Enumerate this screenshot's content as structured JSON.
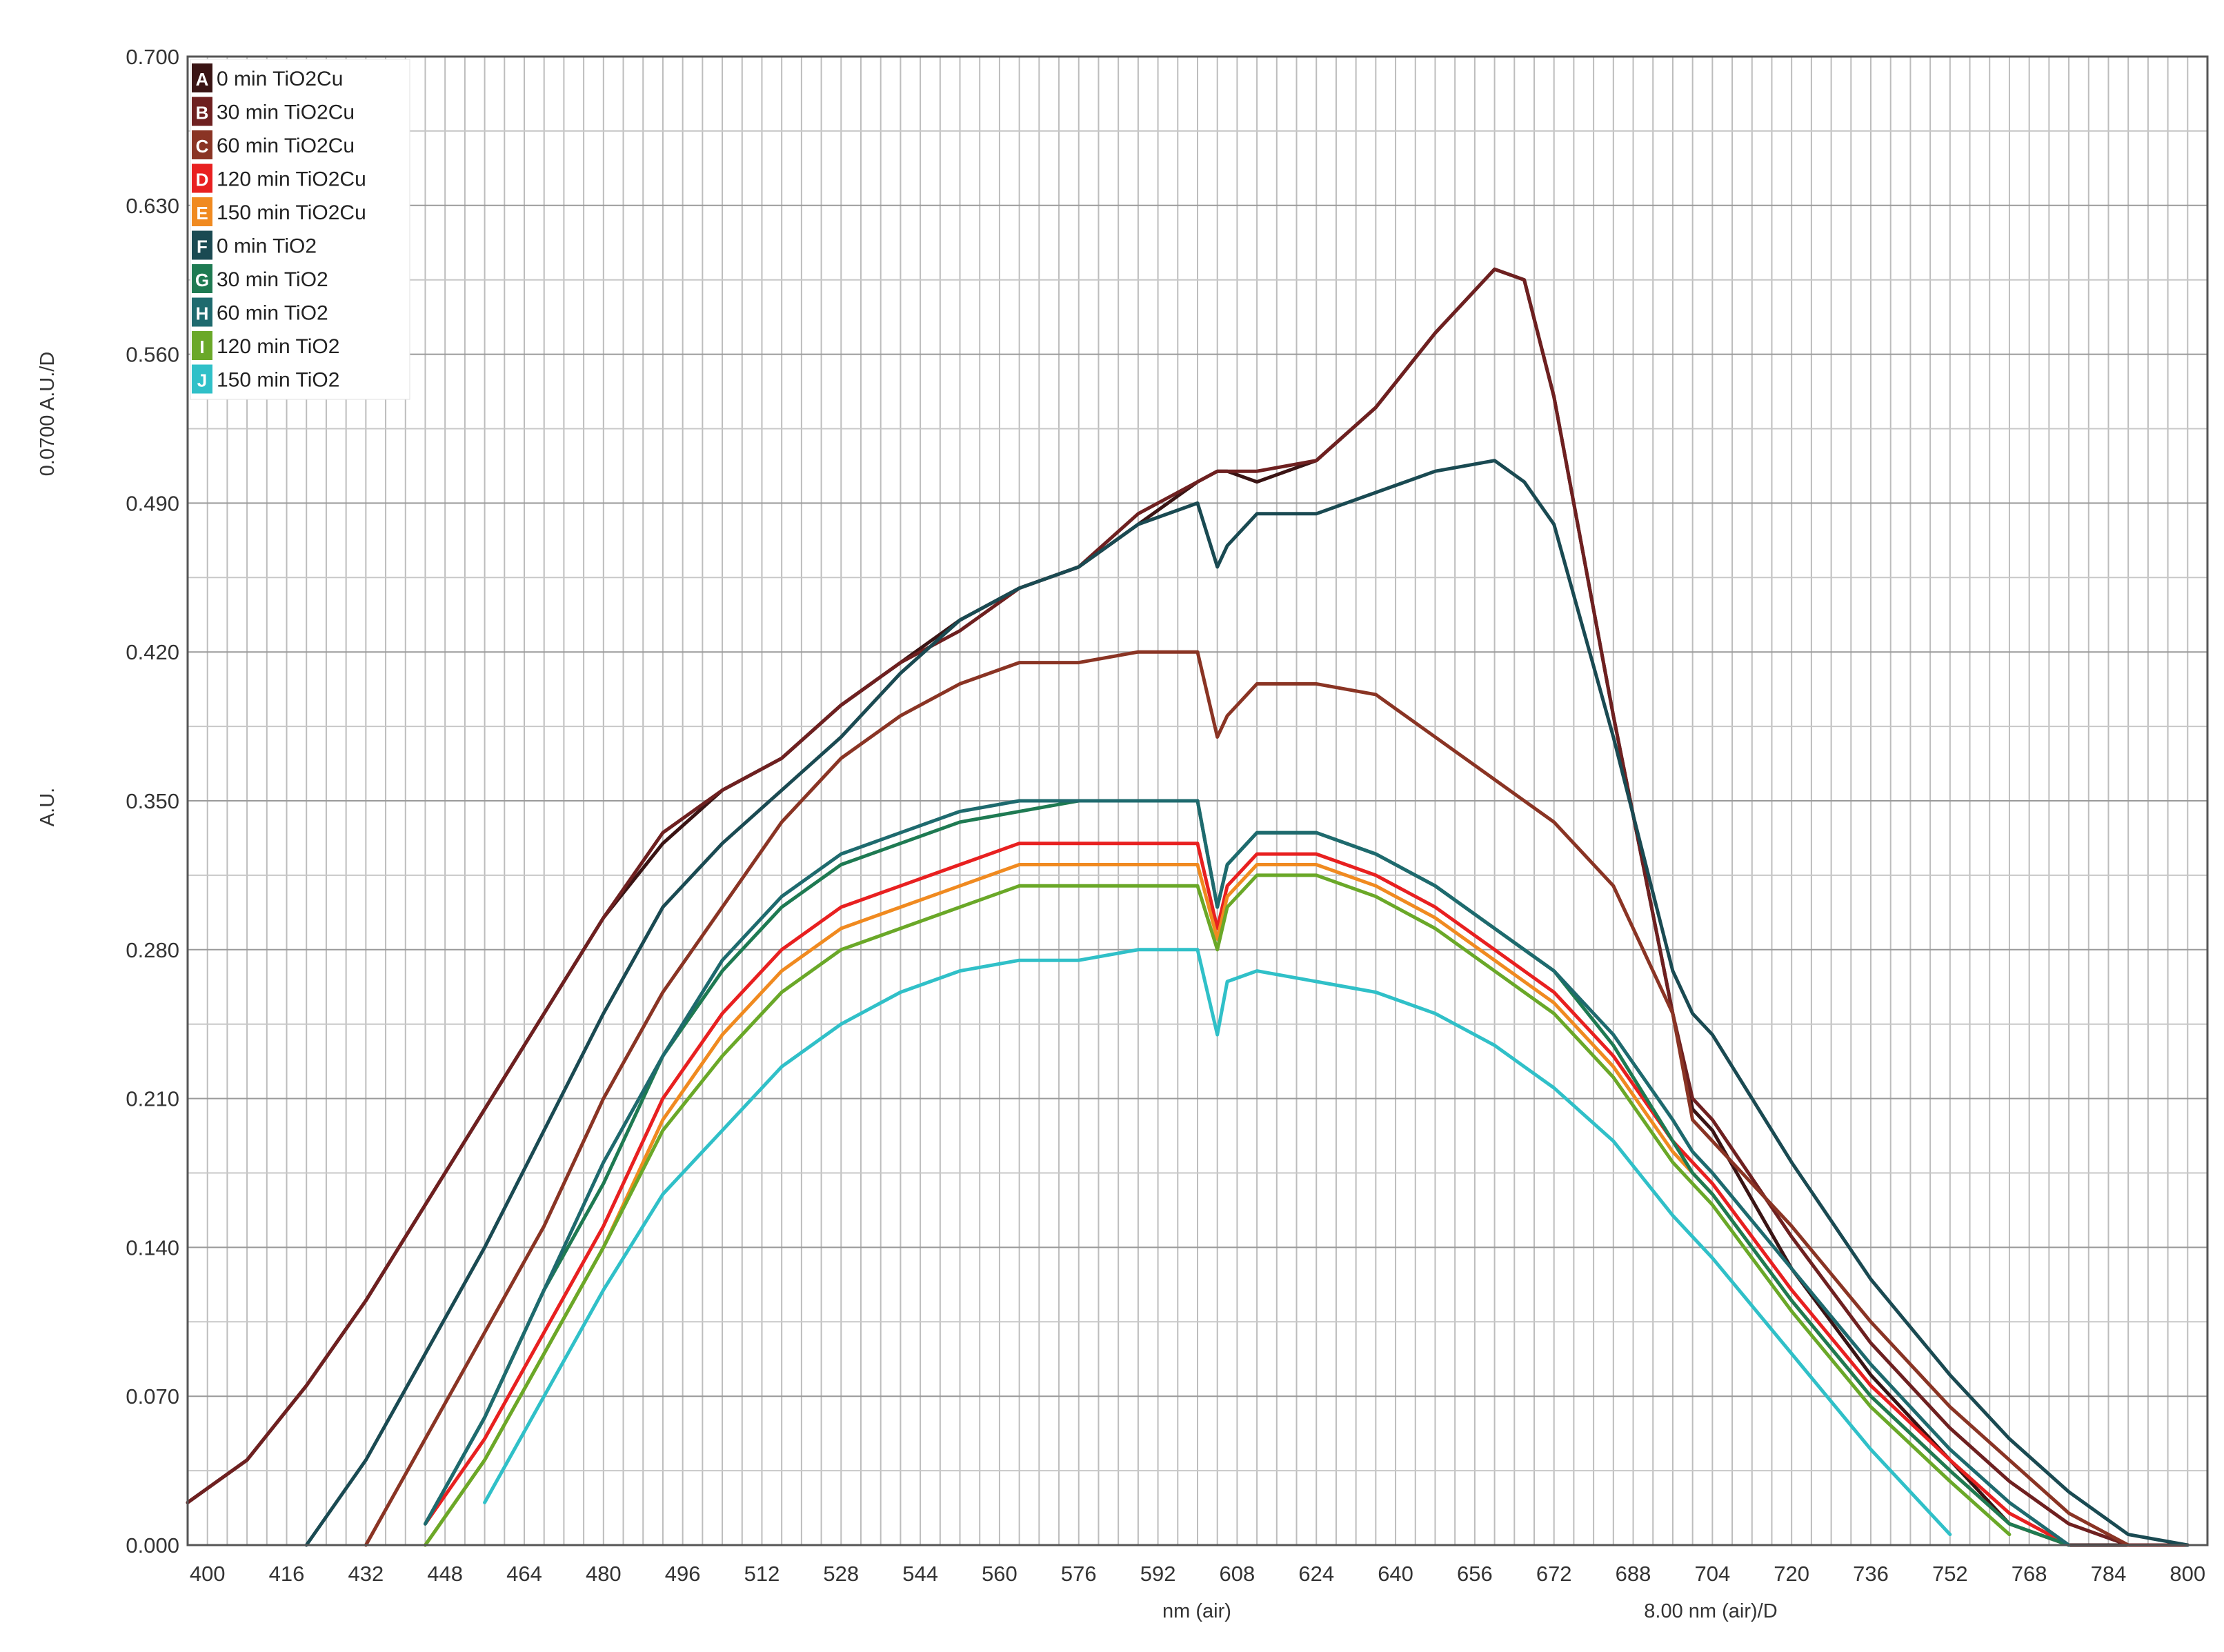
{
  "chart_data": {
    "type": "line",
    "title": "",
    "xlabel": "nm (air)",
    "ylabel": "A.U.",
    "x_scale_label": "8.00 nm (air)/D",
    "y_scale_label": "0.0700 A.U./D",
    "xlim": [
      396,
      804
    ],
    "ylim": [
      0.0,
      0.7
    ],
    "x_ticks": [
      "400",
      "416",
      "432",
      "448",
      "464",
      "480",
      "496",
      "512",
      "528",
      "544",
      "560",
      "576",
      "592",
      "608",
      "624",
      "640",
      "656",
      "672",
      "688",
      "704",
      "720",
      "736",
      "752",
      "768",
      "784",
      "800"
    ],
    "y_ticks": [
      "0.000",
      "0.070",
      "0.140",
      "0.210",
      "0.280",
      "0.350",
      "0.420",
      "0.490",
      "0.560",
      "0.630",
      "0.700"
    ],
    "grid": true,
    "legend_position": "top-left",
    "x": [
      396,
      408,
      420,
      432,
      444,
      456,
      468,
      480,
      492,
      504,
      516,
      528,
      540,
      552,
      564,
      576,
      588,
      600,
      604,
      606,
      612,
      624,
      636,
      648,
      660,
      666,
      672,
      684,
      696,
      700,
      704,
      720,
      736,
      752,
      764,
      776,
      788,
      800
    ],
    "series": [
      {
        "letter": "A",
        "name": "0 min TiO2Cu",
        "color": "#3a1414",
        "values": [
          0.02,
          0.04,
          0.075,
          0.115,
          0.16,
          0.205,
          0.25,
          0.295,
          0.33,
          0.355,
          0.37,
          0.395,
          0.415,
          0.435,
          0.45,
          0.46,
          0.48,
          0.5,
          0.505,
          0.505,
          0.5,
          0.51,
          0.535,
          0.57,
          0.6,
          0.595,
          0.54,
          0.39,
          0.25,
          0.205,
          0.195,
          0.13,
          0.08,
          0.04,
          0.01,
          0.0,
          0.0,
          0.0
        ]
      },
      {
        "letter": "B",
        "name": "30 min TiO2Cu",
        "color": "#6e2020",
        "values": [
          0.02,
          0.04,
          0.075,
          0.115,
          0.16,
          0.205,
          0.25,
          0.295,
          0.335,
          0.355,
          0.37,
          0.395,
          0.415,
          0.43,
          0.45,
          0.46,
          0.485,
          0.5,
          0.505,
          0.505,
          0.505,
          0.51,
          0.535,
          0.57,
          0.6,
          0.595,
          0.54,
          0.39,
          0.25,
          0.21,
          0.2,
          0.145,
          0.095,
          0.055,
          0.03,
          0.01,
          0.0,
          0.0
        ]
      },
      {
        "letter": "C",
        "name": "60 min TiO2Cu",
        "color": "#8a3424",
        "values": [
          null,
          null,
          null,
          0.0,
          0.05,
          0.1,
          0.15,
          0.21,
          0.26,
          0.3,
          0.34,
          0.37,
          0.39,
          0.405,
          0.415,
          0.415,
          0.42,
          0.42,
          0.38,
          0.39,
          0.405,
          0.405,
          0.4,
          0.38,
          0.36,
          0.35,
          0.34,
          0.31,
          0.25,
          0.2,
          0.19,
          0.15,
          0.105,
          0.065,
          0.04,
          0.015,
          0.0,
          null
        ]
      },
      {
        "letter": "D",
        "name": "120 min TiO2Cu",
        "color": "#e82020",
        "values": [
          null,
          null,
          null,
          null,
          0.01,
          0.05,
          0.1,
          0.15,
          0.21,
          0.25,
          0.28,
          0.3,
          0.31,
          0.32,
          0.33,
          0.33,
          0.33,
          0.33,
          0.29,
          0.31,
          0.325,
          0.325,
          0.315,
          0.3,
          0.28,
          0.27,
          0.26,
          0.23,
          0.19,
          0.18,
          0.17,
          0.12,
          0.075,
          0.04,
          0.015,
          0.0,
          null,
          null
        ]
      },
      {
        "letter": "E",
        "name": "150 min TiO2Cu",
        "color": "#f08a20",
        "values": [
          null,
          null,
          null,
          null,
          0.0,
          0.04,
          0.09,
          0.14,
          0.2,
          0.24,
          0.27,
          0.29,
          0.3,
          0.31,
          0.32,
          0.32,
          0.32,
          0.32,
          0.285,
          0.305,
          0.32,
          0.32,
          0.31,
          0.295,
          0.275,
          0.265,
          0.255,
          0.225,
          0.185,
          0.175,
          0.165,
          0.115,
          0.07,
          0.035,
          0.01,
          0.0,
          null,
          null
        ]
      },
      {
        "letter": "F",
        "name": "0 min TiO2",
        "color": "#1a4a52",
        "values": [
          null,
          null,
          0.0,
          0.04,
          0.09,
          0.14,
          0.195,
          0.25,
          0.3,
          0.33,
          0.355,
          0.38,
          0.41,
          0.435,
          0.45,
          0.46,
          0.48,
          0.49,
          0.46,
          0.47,
          0.485,
          0.485,
          0.495,
          0.505,
          0.51,
          0.5,
          0.48,
          0.38,
          0.27,
          0.25,
          0.24,
          0.18,
          0.125,
          0.08,
          0.05,
          0.025,
          0.005,
          0.0
        ]
      },
      {
        "letter": "G",
        "name": "30 min TiO2",
        "color": "#1e7a52",
        "values": [
          null,
          null,
          null,
          null,
          0.01,
          0.06,
          0.12,
          0.17,
          0.23,
          0.27,
          0.3,
          0.32,
          0.33,
          0.34,
          0.345,
          0.35,
          0.35,
          0.35,
          0.3,
          0.32,
          0.335,
          0.335,
          0.325,
          0.31,
          0.29,
          0.28,
          0.27,
          0.235,
          0.19,
          0.175,
          0.165,
          0.115,
          0.07,
          0.035,
          0.01,
          0.0,
          null,
          null
        ]
      },
      {
        "letter": "H",
        "name": "60 min TiO2",
        "color": "#1e6a6e",
        "values": [
          null,
          null,
          null,
          null,
          0.01,
          0.06,
          0.12,
          0.18,
          0.23,
          0.275,
          0.305,
          0.325,
          0.335,
          0.345,
          0.35,
          0.35,
          0.35,
          0.35,
          0.3,
          0.32,
          0.335,
          0.335,
          0.325,
          0.31,
          0.29,
          0.28,
          0.27,
          0.24,
          0.2,
          0.185,
          0.175,
          0.13,
          0.085,
          0.045,
          0.02,
          0.0,
          null,
          null
        ]
      },
      {
        "letter": "I",
        "name": "120 min TiO2",
        "color": "#6aa828",
        "values": [
          null,
          null,
          null,
          null,
          0.0,
          0.04,
          0.09,
          0.14,
          0.195,
          0.23,
          0.26,
          0.28,
          0.29,
          0.3,
          0.31,
          0.31,
          0.31,
          0.31,
          0.28,
          0.3,
          0.315,
          0.315,
          0.305,
          0.29,
          0.27,
          0.26,
          0.25,
          0.22,
          0.18,
          0.17,
          0.16,
          0.11,
          0.065,
          0.03,
          0.005,
          null,
          null,
          null
        ]
      },
      {
        "letter": "J",
        "name": "150 min TiO2",
        "color": "#30c0c8",
        "values": [
          null,
          null,
          null,
          null,
          null,
          0.02,
          0.07,
          0.12,
          0.165,
          0.195,
          0.225,
          0.245,
          0.26,
          0.27,
          0.275,
          0.275,
          0.28,
          0.28,
          0.24,
          0.265,
          0.27,
          0.265,
          0.26,
          0.25,
          0.235,
          0.225,
          0.215,
          0.19,
          0.155,
          0.145,
          0.135,
          0.09,
          0.045,
          0.005,
          null,
          null,
          null,
          null
        ]
      }
    ]
  }
}
